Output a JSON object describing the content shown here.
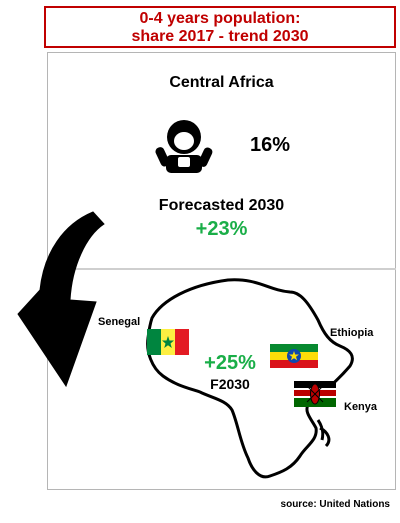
{
  "title": {
    "line1": "0-4 years population:",
    "line2": "share 2017 -  trend 2030"
  },
  "region": "Central Africa",
  "share": "16%",
  "forecast": {
    "label": "Forecasted 2030",
    "value": "+23%"
  },
  "map": {
    "countries": [
      "Senegal",
      "Ethiopia",
      "Kenya"
    ],
    "trend_value": "+25%",
    "trend_label": "F2030"
  },
  "source": "source: United Nations",
  "chart_data": {
    "type": "table",
    "title": "0-4 years population: share 2017 -  trend 2030",
    "rows": [
      {
        "region": "Central Africa",
        "share_2017_percent": 16,
        "trend_2030_percent": 23
      },
      {
        "region": "Senegal, Ethiopia, Kenya",
        "trend_2030_percent": 25
      }
    ]
  },
  "colors": {
    "title_red": "#c00000",
    "positive_green": "#1aae48",
    "border_gray": "#b5b5b5"
  },
  "icons": [
    "baby-icon",
    "curved-arrow-icon",
    "africa-outline-icon",
    "senegal-flag-icon",
    "ethiopia-flag-icon",
    "kenya-flag-icon"
  ]
}
